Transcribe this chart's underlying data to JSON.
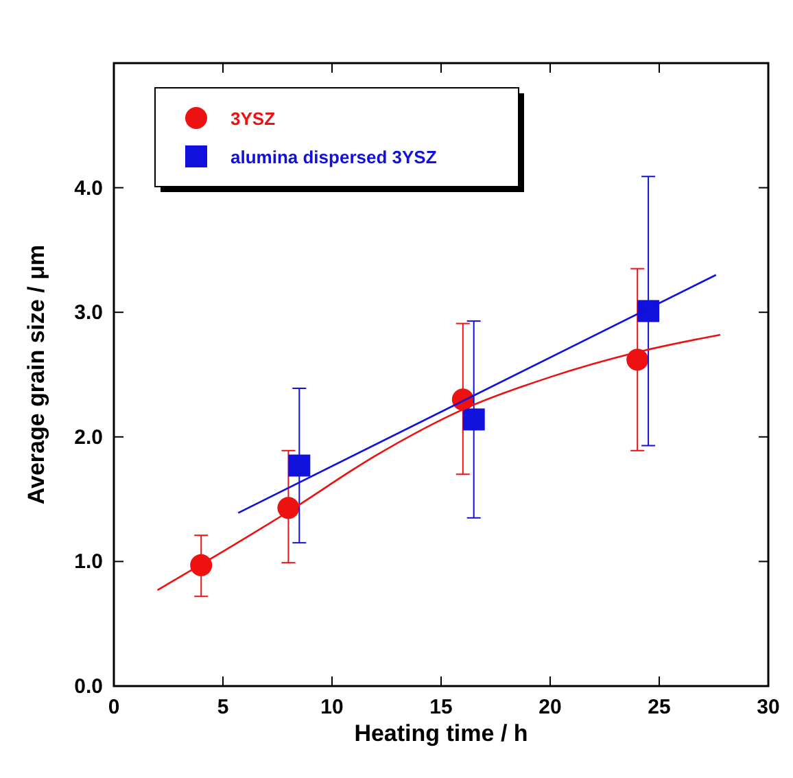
{
  "chart_data": {
    "type": "scatter",
    "xlabel": "Heating time / h",
    "ylabel": "Average grain size / μm",
    "xlim": [
      0,
      30
    ],
    "xticks": [
      0,
      5,
      10,
      15,
      20,
      25,
      30
    ],
    "ylim": [
      0,
      5
    ],
    "yticks": [
      {
        "value": 0,
        "label": "0.0"
      },
      {
        "value": 1,
        "label": "1.0"
      },
      {
        "value": 2,
        "label": "2.0"
      },
      {
        "value": 3,
        "label": "3.0"
      },
      {
        "value": 4,
        "label": "4.0"
      }
    ],
    "legend": "top left",
    "grid": false,
    "series": [
      {
        "name": "3YSZ",
        "color": "#ee1111",
        "marker": "circle",
        "x": [
          4,
          8,
          16,
          24
        ],
        "values": [
          0.97,
          1.43,
          2.3,
          2.62
        ],
        "errors": [
          [
            0.72,
            1.21
          ],
          [
            0.99,
            1.89
          ],
          [
            1.7,
            2.91
          ],
          [
            1.89,
            3.35
          ]
        ]
      },
      {
        "name": "alumina dispersed 3YSZ",
        "color": "#1111dd",
        "marker": "square",
        "x": [
          8.5,
          16.5,
          24.5
        ],
        "values": [
          1.77,
          2.14,
          3.01
        ],
        "errors": [
          [
            1.15,
            2.39
          ],
          [
            1.35,
            2.93
          ],
          [
            1.93,
            4.09
          ]
        ]
      },
      {
        "type": "line",
        "color": "#ee1111",
        "marker": "none",
        "x": [
          2,
          5,
          8,
          12,
          16,
          20,
          24,
          27.8
        ],
        "values": [
          0.77,
          1.08,
          1.4,
          1.85,
          2.22,
          2.48,
          2.68,
          2.82
        ]
      },
      {
        "type": "line",
        "color": "#1111dd",
        "marker": "none",
        "x": [
          5.7,
          27.6
        ],
        "values": [
          1.39,
          3.3
        ]
      }
    ]
  }
}
